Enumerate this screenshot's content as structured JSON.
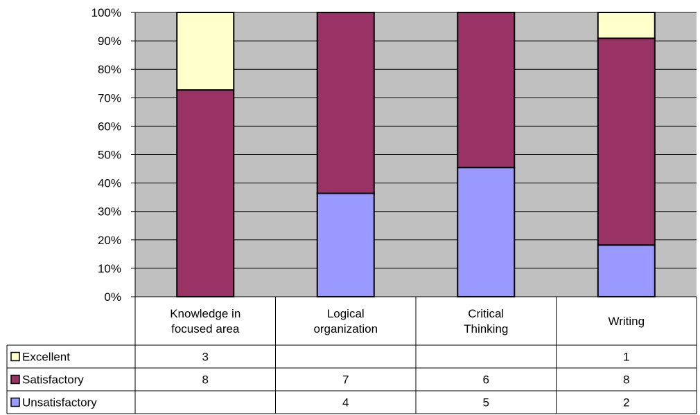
{
  "chart_data": {
    "type": "bar",
    "stacked": true,
    "percent_stacked": true,
    "categories": [
      [
        "Knowledge in",
        "focused area"
      ],
      [
        "Logical",
        "organization"
      ],
      [
        "Critical",
        "Thinking"
      ],
      [
        "Writing"
      ]
    ],
    "series": [
      {
        "name": "Unsatisfactory",
        "values": [
          0,
          4,
          5,
          2
        ],
        "color": "#9999ff"
      },
      {
        "name": "Satisfactory",
        "values": [
          8,
          7,
          6,
          8
        ],
        "color": "#993366"
      },
      {
        "name": "Excellent",
        "values": [
          3,
          0,
          0,
          1
        ],
        "color": "#ffffcc"
      }
    ],
    "table_rows": [
      {
        "label": "Excellent",
        "cells": [
          "3",
          "",
          "",
          "1"
        ]
      },
      {
        "label": "Satisfactory",
        "cells": [
          "8",
          "7",
          "6",
          "8"
        ]
      },
      {
        "label": "Unsatisfactory",
        "cells": [
          "",
          "4",
          "5",
          "2"
        ]
      }
    ],
    "y_ticks": [
      "0%",
      "10%",
      "20%",
      "30%",
      "40%",
      "50%",
      "60%",
      "70%",
      "80%",
      "90%",
      "100%"
    ],
    "ylim": [
      0,
      100
    ],
    "plot_background": "#c0c0c0",
    "grid": true,
    "legend": "data-table"
  }
}
